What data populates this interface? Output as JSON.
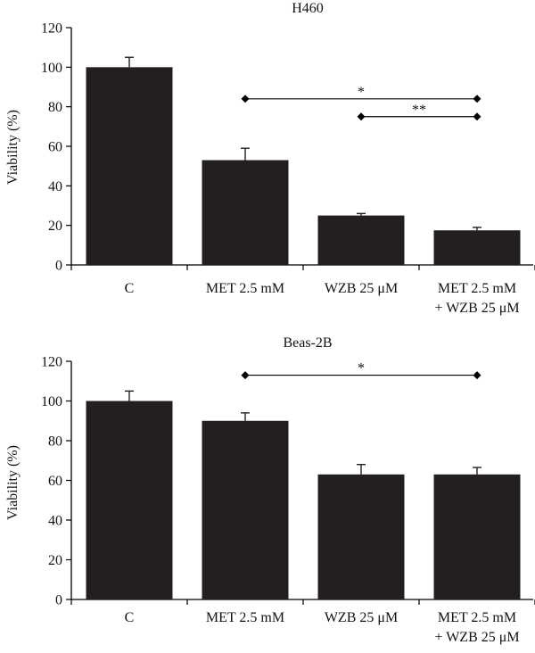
{
  "colors": {
    "bar": "#231f20",
    "axis": "#000000",
    "text": "#111111"
  },
  "chart_data": [
    {
      "type": "bar",
      "title": "H460",
      "ylabel": "Viability (%)",
      "xlabel": "",
      "ylim": [
        0,
        120
      ],
      "yticks": [
        0,
        20,
        40,
        60,
        80,
        100,
        120
      ],
      "categories": [
        [
          "C"
        ],
        [
          "MET 2.5 mM"
        ],
        [
          "WZB 25 μM"
        ],
        [
          "MET 2.5 mM",
          "+ WZB 25 μM"
        ]
      ],
      "values": [
        100,
        53,
        25,
        17.5
      ],
      "errors": [
        5,
        6,
        1,
        1.5
      ],
      "significance": [
        {
          "from": 1,
          "to": 3,
          "y": 84,
          "label": "*"
        },
        {
          "from": 2,
          "to": 3,
          "y": 75,
          "label": "**"
        }
      ]
    },
    {
      "type": "bar",
      "title": "Beas-2B",
      "ylabel": "Viability (%)",
      "xlabel": "",
      "ylim": [
        0,
        120
      ],
      "yticks": [
        0,
        20,
        40,
        60,
        80,
        100,
        120
      ],
      "categories": [
        [
          "C"
        ],
        [
          "MET 2.5 mM"
        ],
        [
          "WZB 25 μM"
        ],
        [
          "MET 2.5 mM",
          "+ WZB 25 μM"
        ]
      ],
      "values": [
        100,
        90,
        63,
        63
      ],
      "errors": [
        5,
        4,
        5,
        3.5
      ],
      "significance": [
        {
          "from": 1,
          "to": 3,
          "y": 113,
          "label": "*"
        }
      ]
    }
  ]
}
